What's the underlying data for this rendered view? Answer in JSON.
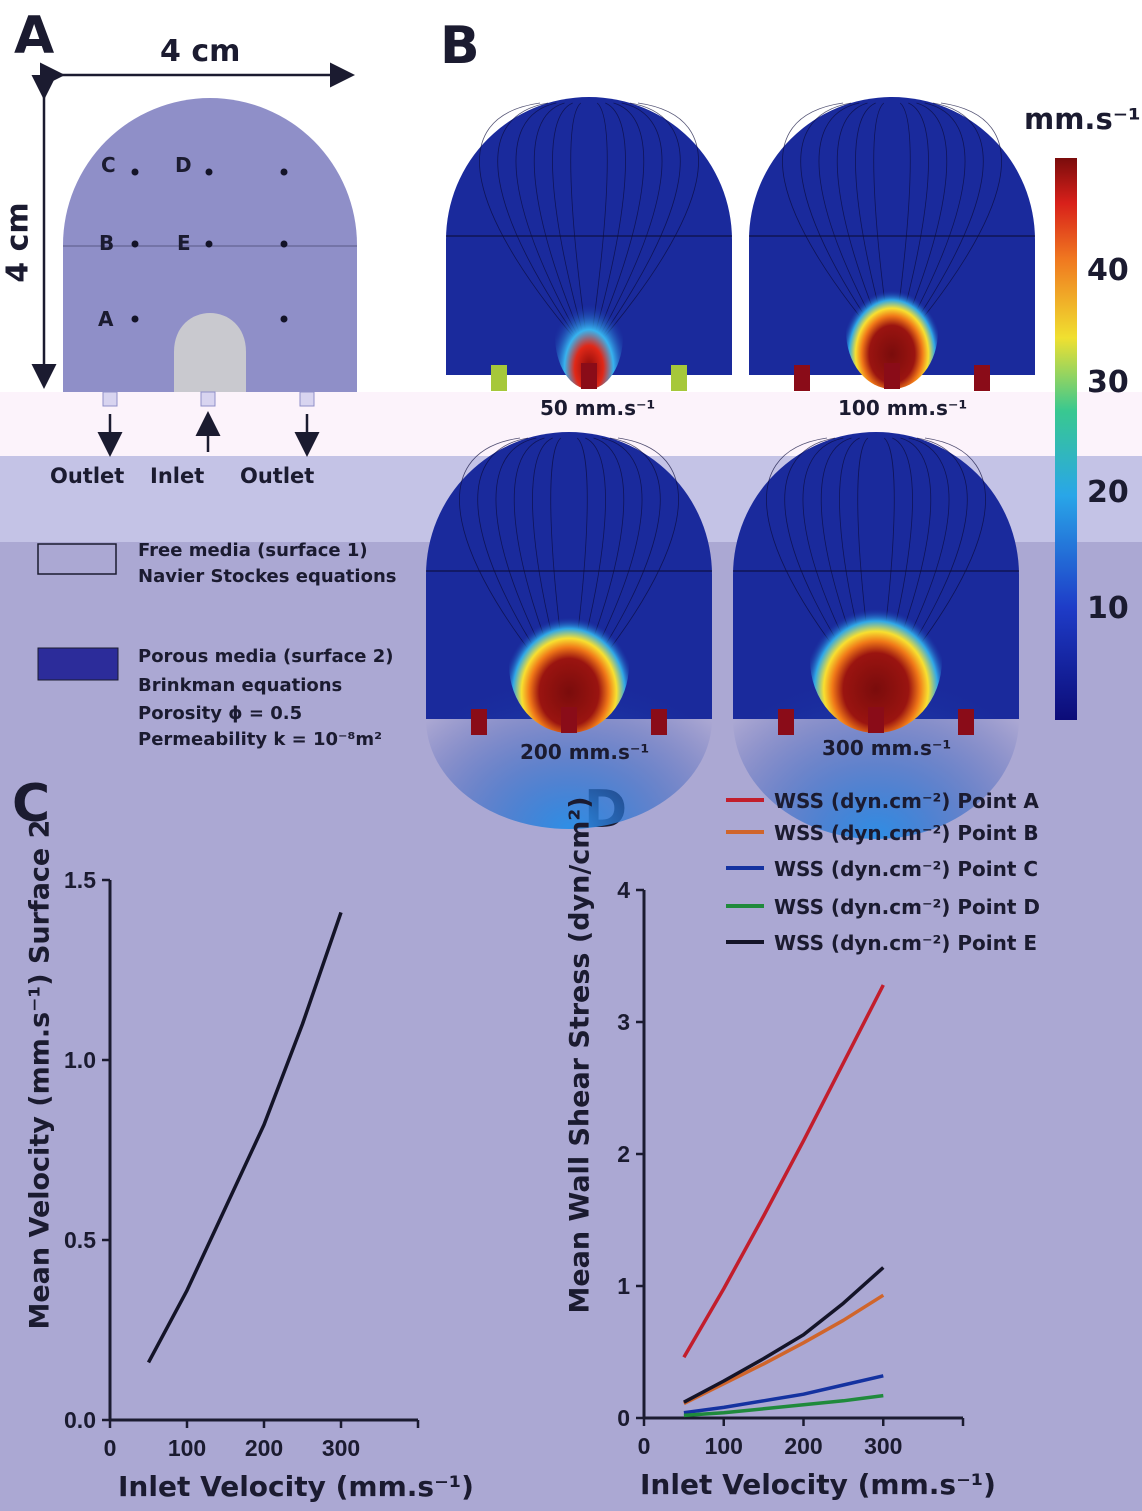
{
  "panels": {
    "a": "A",
    "b": "B",
    "c": "C",
    "d": "D"
  },
  "panel_a": {
    "width_label": "4 cm",
    "height_label": "4 cm",
    "points": [
      "A",
      "B",
      "C",
      "D",
      "E"
    ],
    "outlet_left": "Outlet",
    "inlet": "Inlet",
    "outlet_right": "Outlet",
    "legend": {
      "surface1_line1": "Free media (surface 1)",
      "surface1_line2": "Navier Stockes equations",
      "surface2_line1": "Porous media (surface 2)",
      "surface2_line2": "Brinkman equations",
      "surface2_line3": "Porosity ϕ = 0.5",
      "surface2_line4": "Permeability k = 10⁻⁸m²"
    }
  },
  "panel_b": {
    "unit": "mm.s⁻¹",
    "colorbar_ticks": [
      "10",
      "20",
      "30",
      "40"
    ],
    "maps": [
      {
        "label": "50 mm.s⁻¹"
      },
      {
        "label": "100 mm.s⁻¹"
      },
      {
        "label": "200 mm.s⁻¹"
      },
      {
        "label": "300 mm.s⁻¹"
      }
    ]
  },
  "colors": {
    "point_a": "#c21e2c",
    "point_b": "#d0652b",
    "point_c": "#1432a0",
    "point_d": "#1f8a3c",
    "point_e": "#141428"
  },
  "chart_data": [
    {
      "type": "line",
      "panel": "C",
      "xlabel": "Inlet Velocity (mm.s⁻¹)",
      "ylabel": "Mean Velocity (mm.s⁻¹) Surface 2",
      "xlim": [
        0,
        400
      ],
      "ylim": [
        0,
        1.5
      ],
      "x_ticks": [
        "0",
        "100",
        "200",
        "300"
      ],
      "y_ticks": [
        "0.0",
        "0.5",
        "1.0",
        "1.5"
      ],
      "series": [
        {
          "x": [
            50,
            100,
            150,
            200,
            250,
            300
          ],
          "y": [
            0.16,
            0.36,
            0.59,
            0.82,
            1.1,
            1.41
          ]
        }
      ]
    },
    {
      "type": "line",
      "panel": "D",
      "xlabel": "Inlet Velocity (mm.s⁻¹)",
      "ylabel": "Mean Wall Shear Stress (dyn/cm²)",
      "xlim": [
        0,
        400
      ],
      "ylim": [
        0,
        4
      ],
      "x_ticks": [
        "0",
        "100",
        "200",
        "300"
      ],
      "y_ticks": [
        "0",
        "1",
        "2",
        "3",
        "4"
      ],
      "legend_position": "top-right",
      "series": [
        {
          "name": "WSS (dyn.cm⁻²) Point A",
          "x": [
            50,
            100,
            150,
            200,
            250,
            300
          ],
          "y": [
            0.46,
            0.98,
            1.53,
            2.1,
            2.69,
            3.28
          ]
        },
        {
          "name": "WSS (dyn.cm⁻²) Point B",
          "x": [
            50,
            100,
            150,
            200,
            250,
            300
          ],
          "y": [
            0.11,
            0.26,
            0.41,
            0.57,
            0.74,
            0.93
          ]
        },
        {
          "name": "WSS (dyn.cm⁻²) Point C",
          "x": [
            50,
            100,
            150,
            200,
            250,
            300
          ],
          "y": [
            0.04,
            0.08,
            0.13,
            0.18,
            0.25,
            0.32
          ]
        },
        {
          "name": "WSS (dyn.cm⁻²) Point D",
          "x": [
            50,
            100,
            150,
            200,
            250,
            300
          ],
          "y": [
            0.02,
            0.04,
            0.07,
            0.1,
            0.13,
            0.17
          ]
        },
        {
          "name": "WSS (dyn.cm⁻²) Point E",
          "x": [
            50,
            100,
            150,
            200,
            250,
            300
          ],
          "y": [
            0.12,
            0.28,
            0.45,
            0.63,
            0.87,
            1.14
          ]
        }
      ]
    }
  ]
}
